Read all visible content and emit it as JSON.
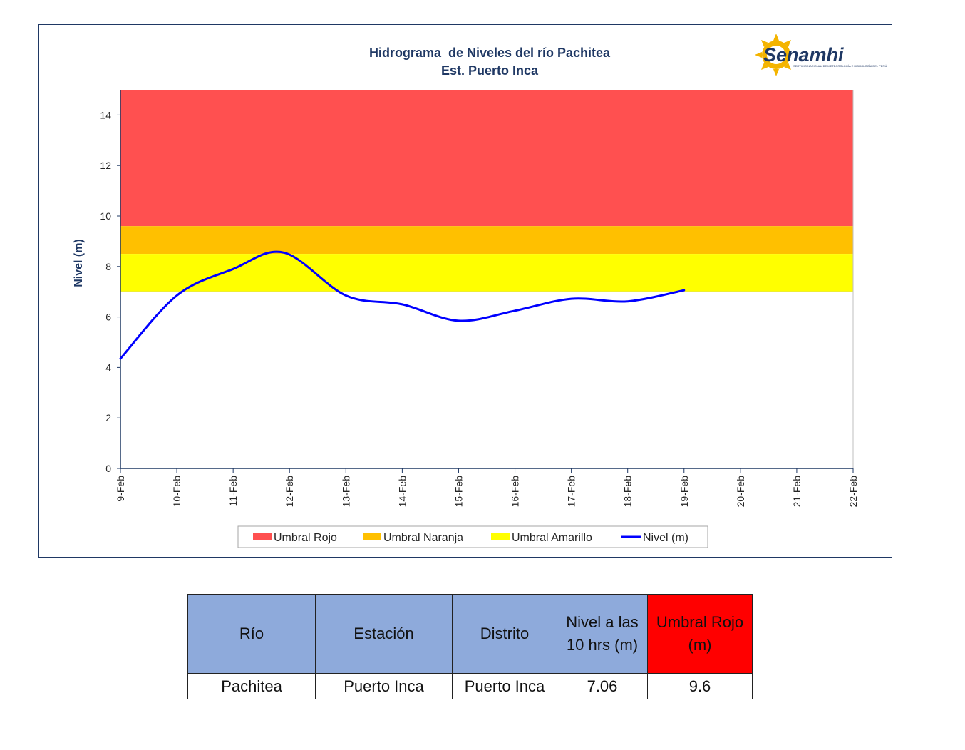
{
  "chart_data": {
    "type": "line",
    "title": "Hidrograma  de Niveles del río Pachitea",
    "subtitle": "Est. Puerto Inca",
    "xlabel": "",
    "ylabel": "Nivel (m)",
    "ylim": [
      0,
      15
    ],
    "yticks": [
      0,
      2,
      4,
      6,
      8,
      10,
      12,
      14
    ],
    "xticks": [
      "9-Feb",
      "10-Feb",
      "11-Feb",
      "12-Feb",
      "13-Feb",
      "14-Feb",
      "15-Feb",
      "16-Feb",
      "17-Feb",
      "18-Feb",
      "19-Feb",
      "20-Feb",
      "21-Feb",
      "22-Feb"
    ],
    "bands": [
      {
        "name": "Umbral Rojo",
        "from": 9.6,
        "to": 15,
        "color": "#ff5050"
      },
      {
        "name": "Umbral Naranja",
        "from": 8.5,
        "to": 9.6,
        "color": "#ffc000"
      },
      {
        "name": "Umbral Amarillo",
        "from": 7.0,
        "to": 8.5,
        "color": "#ffff00"
      }
    ],
    "series": [
      {
        "name": "Nivel (m)",
        "color": "#0000ff",
        "x": [
          "9-Feb",
          "10-Feb",
          "11-Feb",
          "11-Feb 21h",
          "13-Feb",
          "14-Feb",
          "15-Feb",
          "16-Feb",
          "17-Feb",
          "18-Feb",
          "19-Feb"
        ],
        "x_days": [
          0,
          1,
          2,
          2.9,
          4,
          5,
          6,
          7,
          8,
          9,
          10
        ],
        "values": [
          4.35,
          6.85,
          7.9,
          8.55,
          6.85,
          6.5,
          5.85,
          6.25,
          6.72,
          6.62,
          7.06
        ]
      }
    ],
    "legend": "bottom",
    "grid": false
  },
  "logo": {
    "name": "Senamhi",
    "tagline": "SERVICIO NACIONAL DE METEOROLOGÍA E HIDROLOGÍA DEL PERÚ"
  },
  "table": {
    "headers": [
      "Río",
      "Estación",
      "Distrito",
      "Nivel a las 10 hrs (m)",
      "Umbral Rojo (m)"
    ],
    "row": [
      "Pachitea",
      "Puerto Inca",
      "Puerto Inca",
      "7.06",
      "9.6"
    ]
  }
}
